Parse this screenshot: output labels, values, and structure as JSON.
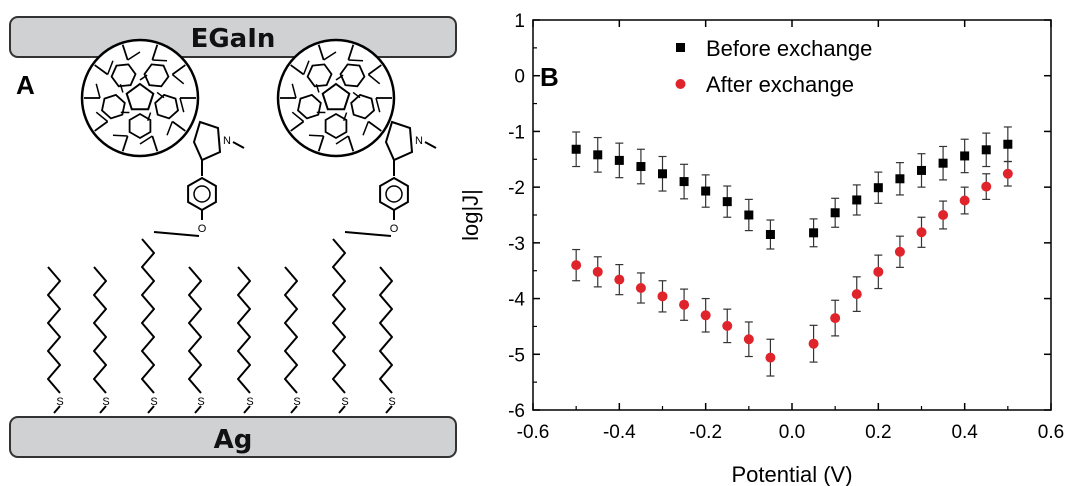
{
  "panel_a": {
    "label": "A",
    "top_electrode": "EGaIn",
    "bottom_electrode": "Ag",
    "sulfur_symbol": "S",
    "oxygen_symbol": "O",
    "nitrogen_symbol": "N",
    "colors": {
      "electrode_fill": "#cfd1d3",
      "electrode_stroke": "#333333"
    }
  },
  "panel_b": {
    "label": "B"
  },
  "chart_data": {
    "type": "scatter",
    "title": "",
    "xlabel": "Potential (V)",
    "ylabel": "log|J|",
    "xlim": [
      -0.6,
      0.6
    ],
    "ylim": [
      -6,
      1
    ],
    "xticks": [
      -0.6,
      -0.4,
      -0.2,
      0.0,
      0.2,
      0.4,
      0.6
    ],
    "yticks": [
      1,
      0,
      -1,
      -2,
      -3,
      -4,
      -5,
      -6
    ],
    "xtick_labels": [
      "-0.6",
      "-0.4",
      "-0.2",
      "0.0",
      "0.2",
      "0.4",
      "0.6"
    ],
    "ytick_labels": [
      "1",
      "0",
      "-1",
      "-2",
      "-3",
      "-4",
      "-5",
      "-6"
    ],
    "grid": false,
    "legend_position": "top-left",
    "series": [
      {
        "name": "Before exchange",
        "marker": "square",
        "color": "#000000",
        "x": [
          -0.5,
          -0.45,
          -0.4,
          -0.35,
          -0.3,
          -0.25,
          -0.2,
          -0.15,
          -0.1,
          -0.05,
          0.05,
          0.1,
          0.15,
          0.2,
          0.25,
          0.3,
          0.35,
          0.4,
          0.45,
          0.5
        ],
        "y": [
          -1.32,
          -1.42,
          -1.52,
          -1.63,
          -1.76,
          -1.9,
          -2.07,
          -2.26,
          -2.5,
          -2.85,
          -2.82,
          -2.46,
          -2.23,
          -2.01,
          -1.85,
          -1.7,
          -1.57,
          -1.44,
          -1.33,
          -1.23
        ],
        "error": [
          0.31,
          0.31,
          0.31,
          0.31,
          0.31,
          0.31,
          0.29,
          0.28,
          0.28,
          0.26,
          0.25,
          0.26,
          0.27,
          0.28,
          0.29,
          0.3,
          0.3,
          0.3,
          0.3,
          0.31
        ]
      },
      {
        "name": "After exchange",
        "marker": "circle",
        "color": "#e0242c",
        "x": [
          -0.5,
          -0.45,
          -0.4,
          -0.35,
          -0.3,
          -0.25,
          -0.2,
          -0.15,
          -0.1,
          -0.05,
          0.05,
          0.1,
          0.15,
          0.2,
          0.25,
          0.3,
          0.35,
          0.4,
          0.45,
          0.5
        ],
        "y": [
          -3.4,
          -3.52,
          -3.66,
          -3.81,
          -3.96,
          -4.11,
          -4.3,
          -4.49,
          -4.73,
          -5.06,
          -4.81,
          -4.35,
          -3.92,
          -3.52,
          -3.16,
          -2.81,
          -2.5,
          -2.24,
          -1.99,
          -1.76
        ],
        "error": [
          0.28,
          0.27,
          0.27,
          0.27,
          0.28,
          0.28,
          0.3,
          0.3,
          0.31,
          0.33,
          0.33,
          0.32,
          0.31,
          0.3,
          0.28,
          0.27,
          0.25,
          0.24,
          0.23,
          0.22
        ]
      }
    ]
  }
}
